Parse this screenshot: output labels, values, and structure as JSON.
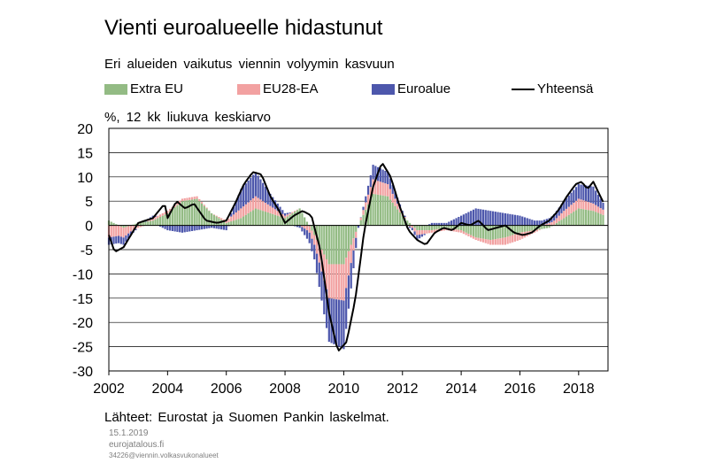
{
  "title": "Vienti euroalueelle hidastunut",
  "subtitle": "Eri alueiden vaikutus viennin volyymin kasvuun",
  "unit_label": "%, 12 kk liukuva keskiarvo",
  "source": "Lähteet: Eurostat ja Suomen Pankin laskelmat.",
  "date": "15.1.2019",
  "site": "eurojatalous.fi",
  "file_id": "34226@viennin.volkasvukonalueet",
  "colors": {
    "extra_eu": "#93BB84",
    "eu28_ea": "#F2A1A1",
    "euroalue": "#4D57AC",
    "total": "#000000",
    "grid": "#000000"
  },
  "chart_data": {
    "type": "bar",
    "stacked": true,
    "ylim": [
      -30,
      20
    ],
    "yticks": [
      20,
      15,
      10,
      5,
      0,
      -5,
      -10,
      -15,
      -20,
      -25,
      -30
    ],
    "xlim": [
      2002,
      2019
    ],
    "xticks": [
      "2002",
      "2004",
      "2006",
      "2008",
      "2010",
      "2012",
      "2014",
      "2016",
      "2018"
    ],
    "grid": true,
    "legend_position": "top",
    "series": [
      {
        "name": "Extra EU",
        "points": [
          [
            2002.0,
            1.0
          ],
          [
            2002.5,
            -0.5
          ],
          [
            2003.0,
            0.5
          ],
          [
            2003.5,
            1.0
          ],
          [
            2004.0,
            2.5
          ],
          [
            2004.5,
            5.0
          ],
          [
            2005.0,
            5.5
          ],
          [
            2005.5,
            2.5
          ],
          [
            2006.0,
            0.5
          ],
          [
            2006.5,
            1.5
          ],
          [
            2007.0,
            3.5
          ],
          [
            2007.5,
            2.5
          ],
          [
            2008.0,
            1.5
          ],
          [
            2008.5,
            3.5
          ],
          [
            2009.0,
            -2.0
          ],
          [
            2009.5,
            -8.0
          ],
          [
            2010.0,
            -8.0
          ],
          [
            2010.5,
            0.0
          ],
          [
            2011.0,
            6.5
          ],
          [
            2011.5,
            6.0
          ],
          [
            2012.0,
            2.0
          ],
          [
            2012.5,
            -1.0
          ],
          [
            2013.0,
            -1.0
          ],
          [
            2013.5,
            -0.5
          ],
          [
            2014.0,
            -1.0
          ],
          [
            2014.5,
            -2.5
          ],
          [
            2015.0,
            -3.0
          ],
          [
            2015.5,
            -2.5
          ],
          [
            2016.0,
            -1.5
          ],
          [
            2016.5,
            -1.0
          ],
          [
            2017.0,
            -0.5
          ],
          [
            2017.5,
            1.5
          ],
          [
            2018.0,
            3.5
          ],
          [
            2018.5,
            3.0
          ],
          [
            2018.9,
            2.0
          ]
        ]
      },
      {
        "name": "EU28-EA",
        "points": [
          [
            2002.0,
            -2.5
          ],
          [
            2002.5,
            -2.0
          ],
          [
            2003.0,
            -0.5
          ],
          [
            2003.5,
            0.5
          ],
          [
            2004.0,
            0.5
          ],
          [
            2004.5,
            0.5
          ],
          [
            2005.0,
            0.5
          ],
          [
            2005.5,
            0.0
          ],
          [
            2006.0,
            0.5
          ],
          [
            2006.5,
            2.0
          ],
          [
            2007.0,
            2.5
          ],
          [
            2007.5,
            1.5
          ],
          [
            2008.0,
            0.5
          ],
          [
            2008.5,
            0.0
          ],
          [
            2009.0,
            -2.0
          ],
          [
            2009.5,
            -7.0
          ],
          [
            2010.0,
            -7.5
          ],
          [
            2010.5,
            0.0
          ],
          [
            2011.0,
            3.0
          ],
          [
            2011.5,
            2.5
          ],
          [
            2012.0,
            0.5
          ],
          [
            2012.5,
            -1.0
          ],
          [
            2013.0,
            -0.5
          ],
          [
            2013.5,
            -0.5
          ],
          [
            2014.0,
            -0.5
          ],
          [
            2014.5,
            -0.5
          ],
          [
            2015.0,
            -1.0
          ],
          [
            2015.5,
            -1.5
          ],
          [
            2016.0,
            -1.5
          ],
          [
            2016.5,
            -0.5
          ],
          [
            2017.0,
            0.5
          ],
          [
            2017.5,
            1.5
          ],
          [
            2018.0,
            2.0
          ],
          [
            2018.5,
            1.5
          ],
          [
            2018.9,
            1.0
          ]
        ]
      },
      {
        "name": "Euroalue",
        "points": [
          [
            2002.0,
            -1.5
          ],
          [
            2002.5,
            -1.5
          ],
          [
            2003.0,
            0.0
          ],
          [
            2003.5,
            0.5
          ],
          [
            2004.0,
            -1.0
          ],
          [
            2004.5,
            -1.5
          ],
          [
            2005.0,
            -1.0
          ],
          [
            2005.5,
            -0.5
          ],
          [
            2006.0,
            -1.0
          ],
          [
            2006.5,
            4.0
          ],
          [
            2007.0,
            5.0
          ],
          [
            2007.5,
            2.5
          ],
          [
            2008.0,
            0.5
          ],
          [
            2008.5,
            -0.5
          ],
          [
            2009.0,
            -3.0
          ],
          [
            2009.5,
            -9.0
          ],
          [
            2010.0,
            -10.0
          ],
          [
            2010.5,
            -0.5
          ],
          [
            2011.0,
            3.0
          ],
          [
            2011.5,
            2.5
          ],
          [
            2012.0,
            0.5
          ],
          [
            2012.5,
            -1.0
          ],
          [
            2013.0,
            0.5
          ],
          [
            2013.5,
            0.5
          ],
          [
            2014.0,
            2.0
          ],
          [
            2014.5,
            3.5
          ],
          [
            2015.0,
            3.0
          ],
          [
            2015.5,
            2.5
          ],
          [
            2016.0,
            2.0
          ],
          [
            2016.5,
            1.0
          ],
          [
            2017.0,
            1.0
          ],
          [
            2017.5,
            2.0
          ],
          [
            2018.0,
            3.0
          ],
          [
            2018.5,
            3.5
          ],
          [
            2018.9,
            1.0
          ]
        ]
      },
      {
        "name": "Yhteensä",
        "points": [
          [
            2002.0,
            -2.0
          ],
          [
            2002.2,
            -5.5
          ],
          [
            2002.5,
            -4.5
          ],
          [
            2003.0,
            0.5
          ],
          [
            2003.5,
            1.5
          ],
          [
            2003.9,
            4.5
          ],
          [
            2004.0,
            1.5
          ],
          [
            2004.3,
            5.0
          ],
          [
            2004.6,
            3.5
          ],
          [
            2004.9,
            4.5
          ],
          [
            2005.3,
            1.0
          ],
          [
            2005.7,
            0.5
          ],
          [
            2006.0,
            1.0
          ],
          [
            2006.3,
            4.5
          ],
          [
            2006.6,
            8.5
          ],
          [
            2006.9,
            11.0
          ],
          [
            2007.2,
            10.5
          ],
          [
            2007.5,
            6.0
          ],
          [
            2007.8,
            3.0
          ],
          [
            2008.0,
            0.5
          ],
          [
            2008.3,
            2.0
          ],
          [
            2008.6,
            3.0
          ],
          [
            2008.9,
            2.0
          ],
          [
            2009.2,
            -5.0
          ],
          [
            2009.5,
            -18.0
          ],
          [
            2009.8,
            -26.0
          ],
          [
            2010.1,
            -24.0
          ],
          [
            2010.4,
            -15.0
          ],
          [
            2010.7,
            -1.0
          ],
          [
            2011.0,
            8.0
          ],
          [
            2011.3,
            13.0
          ],
          [
            2011.6,
            10.0
          ],
          [
            2011.9,
            4.0
          ],
          [
            2012.2,
            -1.0
          ],
          [
            2012.5,
            -3.0
          ],
          [
            2012.8,
            -4.0
          ],
          [
            2013.1,
            -1.5
          ],
          [
            2013.4,
            -0.5
          ],
          [
            2013.7,
            -1.0
          ],
          [
            2014.0,
            0.5
          ],
          [
            2014.3,
            0.0
          ],
          [
            2014.6,
            1.0
          ],
          [
            2014.9,
            -1.0
          ],
          [
            2015.2,
            -0.5
          ],
          [
            2015.5,
            0.0
          ],
          [
            2015.8,
            -1.5
          ],
          [
            2016.1,
            -2.0
          ],
          [
            2016.4,
            -1.5
          ],
          [
            2016.7,
            0.0
          ],
          [
            2017.0,
            1.0
          ],
          [
            2017.3,
            3.0
          ],
          [
            2017.6,
            6.0
          ],
          [
            2017.9,
            8.5
          ],
          [
            2018.1,
            9.0
          ],
          [
            2018.3,
            7.5
          ],
          [
            2018.5,
            9.0
          ],
          [
            2018.7,
            6.5
          ],
          [
            2018.9,
            4.0
          ]
        ]
      }
    ]
  }
}
